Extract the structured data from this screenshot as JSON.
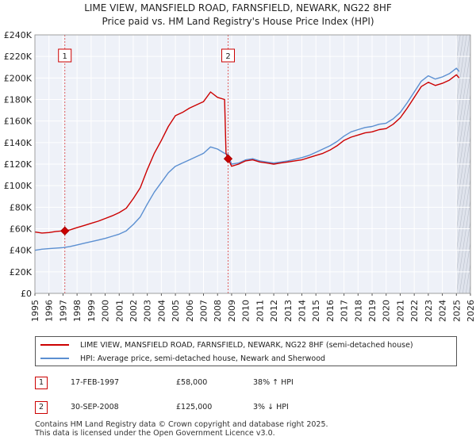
{
  "chart_data": {
    "type": "line",
    "title": "LIME VIEW, MANSFIELD ROAD, FARNSFIELD, NEWARK, NG22 8HF",
    "subtitle": "Price paid vs. HM Land Registry's House Price Index (HPI)",
    "xlabel": "",
    "ylabel": "",
    "xlim": [
      1995,
      2026
    ],
    "ylim": [
      0,
      240000
    ],
    "x_ticks": [
      "1995",
      "1996",
      "1997",
      "1998",
      "1999",
      "2000",
      "2001",
      "2002",
      "2003",
      "2004",
      "2005",
      "2006",
      "2007",
      "2008",
      "2009",
      "2010",
      "2011",
      "2012",
      "2013",
      "2014",
      "2015",
      "2016",
      "2017",
      "2018",
      "2019",
      "2020",
      "2021",
      "2022",
      "2023",
      "2024",
      "2025",
      "2026"
    ],
    "y_ticks": [
      {
        "value": 0,
        "label": "£0"
      },
      {
        "value": 20000,
        "label": "£20K"
      },
      {
        "value": 40000,
        "label": "£40K"
      },
      {
        "value": 60000,
        "label": "£60K"
      },
      {
        "value": 80000,
        "label": "£80K"
      },
      {
        "value": 100000,
        "label": "£100K"
      },
      {
        "value": 120000,
        "label": "£120K"
      },
      {
        "value": 140000,
        "label": "£140K"
      },
      {
        "value": 160000,
        "label": "£160K"
      },
      {
        "value": 180000,
        "label": "£180K"
      },
      {
        "value": 200000,
        "label": "£200K"
      },
      {
        "value": 220000,
        "label": "£220K"
      },
      {
        "value": 240000,
        "label": "£240K"
      }
    ],
    "grid": true,
    "series": [
      {
        "name": "LIME VIEW, MANSFIELD ROAD, FARNSFIELD, NEWARK, NG22 8HF (semi-detached house)",
        "color": "#cc0000",
        "points": [
          [
            1995.0,
            57000
          ],
          [
            1995.5,
            56000
          ],
          [
            1996.0,
            56500
          ],
          [
            1996.5,
            57500
          ],
          [
            1997.0,
            58000
          ],
          [
            1997.13,
            58000
          ],
          [
            1997.5,
            59000
          ],
          [
            1998.0,
            61000
          ],
          [
            1998.5,
            63000
          ],
          [
            1999.0,
            65000
          ],
          [
            1999.5,
            67000
          ],
          [
            2000.0,
            69500
          ],
          [
            2000.5,
            72000
          ],
          [
            2001.0,
            75000
          ],
          [
            2001.5,
            79000
          ],
          [
            2002.0,
            88000
          ],
          [
            2002.5,
            98000
          ],
          [
            2003.0,
            115000
          ],
          [
            2003.5,
            130000
          ],
          [
            2004.0,
            142000
          ],
          [
            2004.5,
            155000
          ],
          [
            2005.0,
            165000
          ],
          [
            2005.5,
            168000
          ],
          [
            2006.0,
            172000
          ],
          [
            2006.5,
            175000
          ],
          [
            2007.0,
            178000
          ],
          [
            2007.5,
            187000
          ],
          [
            2008.0,
            182000
          ],
          [
            2008.5,
            180000
          ],
          [
            2008.6,
            130000
          ],
          [
            2008.75,
            125000
          ],
          [
            2009.0,
            118000
          ],
          [
            2009.5,
            120000
          ],
          [
            2010.0,
            123000
          ],
          [
            2010.5,
            124000
          ],
          [
            2011.0,
            122000
          ],
          [
            2011.5,
            121000
          ],
          [
            2012.0,
            120000
          ],
          [
            2012.5,
            121000
          ],
          [
            2013.0,
            122000
          ],
          [
            2013.5,
            123000
          ],
          [
            2014.0,
            124000
          ],
          [
            2014.5,
            126000
          ],
          [
            2015.0,
            128000
          ],
          [
            2015.5,
            130000
          ],
          [
            2016.0,
            133000
          ],
          [
            2016.5,
            137000
          ],
          [
            2017.0,
            142000
          ],
          [
            2017.5,
            145000
          ],
          [
            2018.0,
            147000
          ],
          [
            2018.5,
            149000
          ],
          [
            2019.0,
            150000
          ],
          [
            2019.5,
            152000
          ],
          [
            2020.0,
            153000
          ],
          [
            2020.5,
            157000
          ],
          [
            2021.0,
            163000
          ],
          [
            2021.5,
            172000
          ],
          [
            2022.0,
            182000
          ],
          [
            2022.5,
            192000
          ],
          [
            2023.0,
            196000
          ],
          [
            2023.5,
            193000
          ],
          [
            2024.0,
            195000
          ],
          [
            2024.5,
            198000
          ],
          [
            2025.0,
            203000
          ],
          [
            2025.2,
            200000
          ]
        ]
      },
      {
        "name": "HPI: Average price, semi-detached house, Newark and Sherwood",
        "color": "#5b8fd1",
        "points": [
          [
            1995.0,
            40000
          ],
          [
            1995.5,
            41000
          ],
          [
            1996.0,
            41500
          ],
          [
            1996.5,
            42000
          ],
          [
            1997.0,
            42500
          ],
          [
            1997.5,
            43500
          ],
          [
            1998.0,
            45000
          ],
          [
            1998.5,
            46500
          ],
          [
            1999.0,
            48000
          ],
          [
            1999.5,
            49500
          ],
          [
            2000.0,
            51000
          ],
          [
            2000.5,
            53000
          ],
          [
            2001.0,
            55000
          ],
          [
            2001.5,
            58000
          ],
          [
            2002.0,
            64000
          ],
          [
            2002.5,
            71000
          ],
          [
            2003.0,
            83000
          ],
          [
            2003.5,
            94000
          ],
          [
            2004.0,
            103000
          ],
          [
            2004.5,
            112000
          ],
          [
            2005.0,
            118000
          ],
          [
            2005.5,
            121000
          ],
          [
            2006.0,
            124000
          ],
          [
            2006.5,
            127000
          ],
          [
            2007.0,
            130000
          ],
          [
            2007.5,
            136000
          ],
          [
            2008.0,
            134000
          ],
          [
            2008.5,
            130000
          ],
          [
            2008.75,
            129000
          ],
          [
            2009.0,
            120000
          ],
          [
            2009.5,
            121000
          ],
          [
            2010.0,
            124000
          ],
          [
            2010.5,
            125000
          ],
          [
            2011.0,
            123000
          ],
          [
            2011.5,
            122000
          ],
          [
            2012.0,
            121000
          ],
          [
            2012.5,
            122000
          ],
          [
            2013.0,
            123000
          ],
          [
            2013.5,
            124500
          ],
          [
            2014.0,
            126000
          ],
          [
            2014.5,
            128000
          ],
          [
            2015.0,
            131000
          ],
          [
            2015.5,
            134000
          ],
          [
            2016.0,
            137000
          ],
          [
            2016.5,
            141000
          ],
          [
            2017.0,
            146000
          ],
          [
            2017.5,
            150000
          ],
          [
            2018.0,
            152000
          ],
          [
            2018.5,
            154000
          ],
          [
            2019.0,
            155000
          ],
          [
            2019.5,
            157000
          ],
          [
            2020.0,
            158000
          ],
          [
            2020.5,
            162000
          ],
          [
            2021.0,
            168000
          ],
          [
            2021.5,
            177000
          ],
          [
            2022.0,
            187000
          ],
          [
            2022.5,
            197000
          ],
          [
            2023.0,
            202000
          ],
          [
            2023.5,
            199000
          ],
          [
            2024.0,
            201000
          ],
          [
            2024.5,
            204000
          ],
          [
            2025.0,
            209000
          ],
          [
            2025.2,
            206000
          ]
        ]
      }
    ],
    "sales": [
      {
        "num": "1",
        "x": 1997.13,
        "value": 58000
      },
      {
        "num": "2",
        "x": 2008.75,
        "value": 125000
      }
    ],
    "future_region_start": 2025.0
  },
  "legend": {
    "items": [
      {
        "label": "LIME VIEW, MANSFIELD ROAD, FARNSFIELD, NEWARK, NG22 8HF (semi-detached house)",
        "color": "#cc0000"
      },
      {
        "label": "HPI: Average price, semi-detached house, Newark and Sherwood",
        "color": "#5b8fd1"
      }
    ]
  },
  "sales_table": [
    {
      "num": "1",
      "date": "17-FEB-1997",
      "price": "£58,000",
      "hpi": "38% ↑ HPI"
    },
    {
      "num": "2",
      "date": "30-SEP-2008",
      "price": "£125,000",
      "hpi": "3% ↓ HPI"
    }
  ],
  "footer": {
    "line1": "Contains HM Land Registry data © Crown copyright and database right 2025.",
    "line2": "This data is licensed under the Open Government Licence v3.0."
  }
}
